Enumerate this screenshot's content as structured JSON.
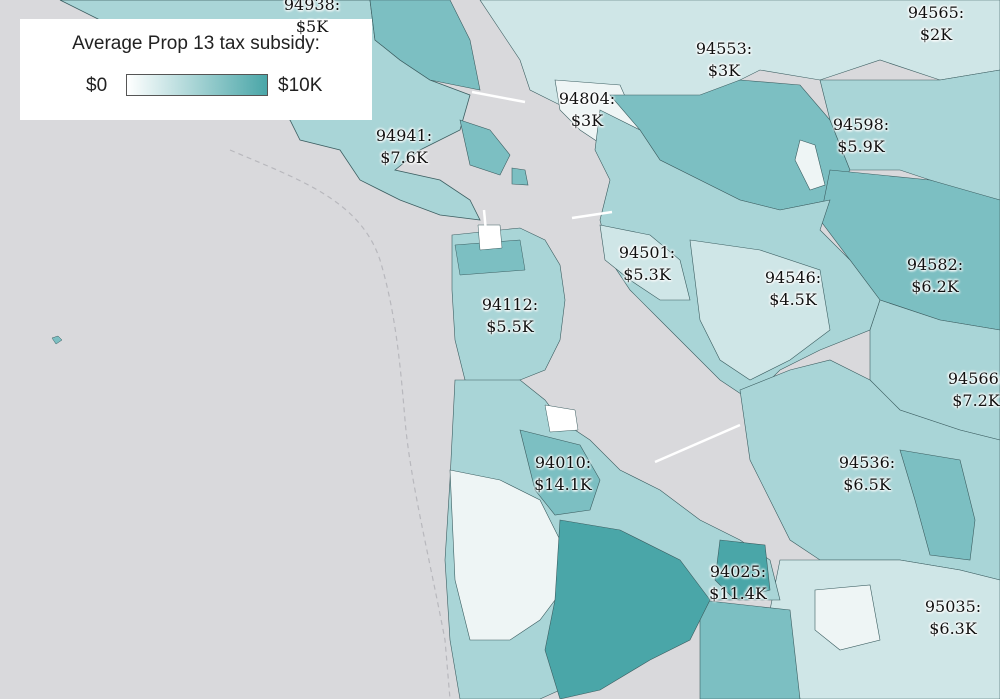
{
  "legend": {
    "title": "Average Prop 13 tax subsidy:",
    "min_label": "$0",
    "max_label": "$10K",
    "color_low": "#ffffff",
    "color_high": "#4aa6a8"
  },
  "colors": {
    "ocean": "#d9d9dc",
    "region_lightest": "#eef5f5",
    "region_light": "#cfe6e7",
    "region_mid": "#a9d5d7",
    "region_dark": "#7cbfc2",
    "region_darkest": "#4aa6a8",
    "region_border": "#3c5e61"
  },
  "labels": [
    {
      "zip": "94938:",
      "value": "$5K"
    },
    {
      "zip": "94565:",
      "value": "$2K"
    },
    {
      "zip": "94553:",
      "value": "$3K"
    },
    {
      "zip": "94804:",
      "value": "$3K"
    },
    {
      "zip": "94598:",
      "value": "$5.9K"
    },
    {
      "zip": "94941:",
      "value": "$7.6K"
    },
    {
      "zip": "94501:",
      "value": "$5.3K"
    },
    {
      "zip": "94546:",
      "value": "$4.5K"
    },
    {
      "zip": "94582:",
      "value": "$6.2K"
    },
    {
      "zip": "94112:",
      "value": "$5.5K"
    },
    {
      "zip": "94566:",
      "value": "$7.2K"
    },
    {
      "zip": "94010:",
      "value": "$14.1K"
    },
    {
      "zip": "94536:",
      "value": "$6.5K"
    },
    {
      "zip": "94025:",
      "value": "$11.4K"
    },
    {
      "zip": "95035:",
      "value": "$6.3K"
    }
  ]
}
